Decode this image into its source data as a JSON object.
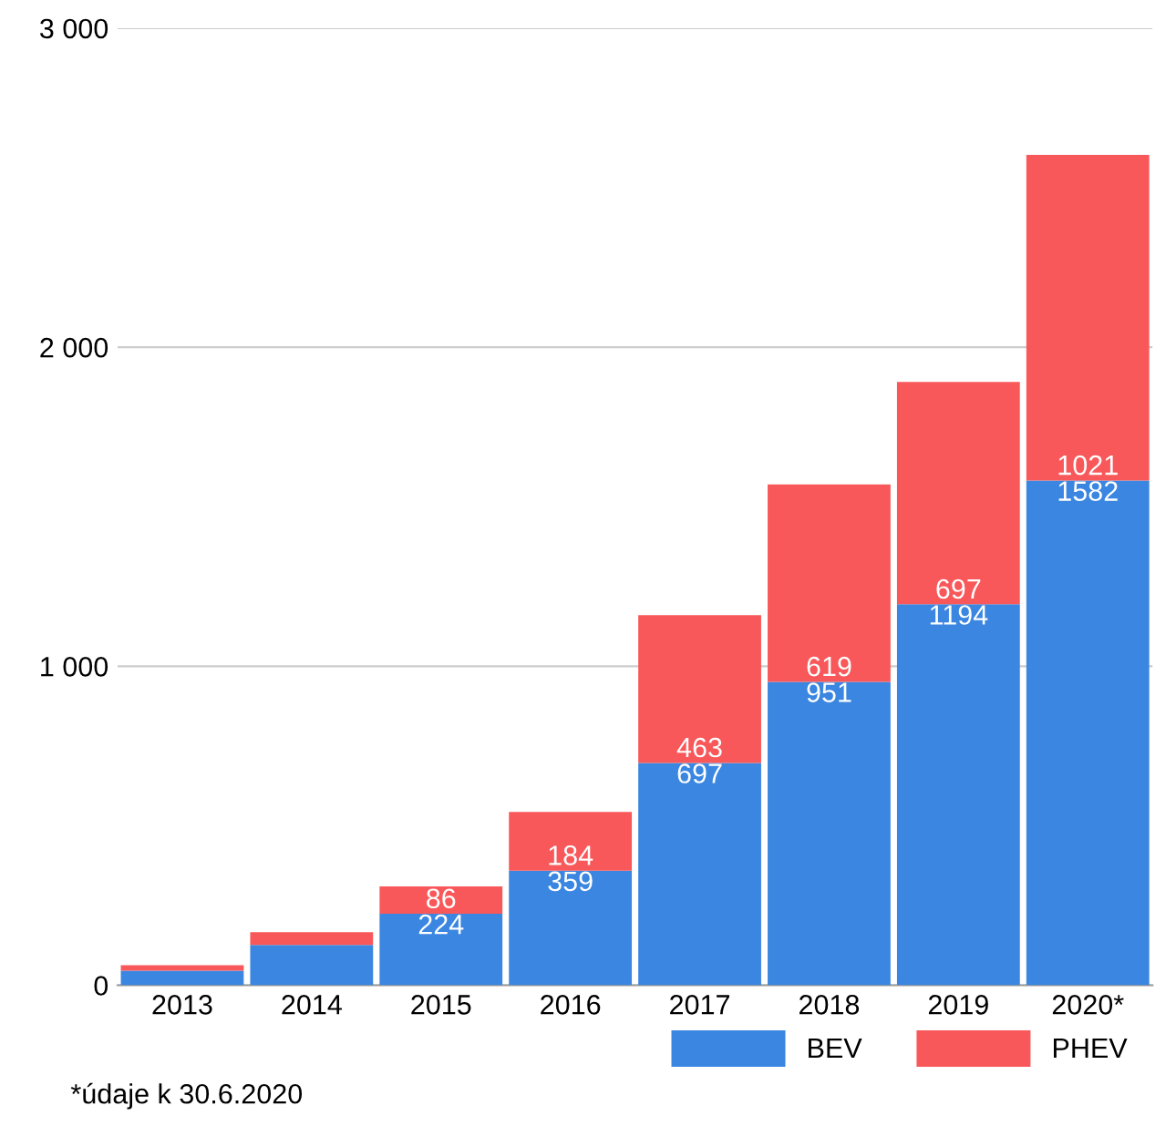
{
  "chart_data": {
    "type": "bar",
    "stacked": true,
    "categories": [
      "2013",
      "2014",
      "2015",
      "2016",
      "2017",
      "2018",
      "2019",
      "2020*"
    ],
    "series": [
      {
        "name": "BEV",
        "color": "#3a86e0",
        "values": [
          46,
          126,
          224,
          359,
          697,
          951,
          1194,
          1582
        ],
        "value_labels": [
          null,
          null,
          "224",
          "359",
          "697",
          "951",
          "1194",
          "1582"
        ]
      },
      {
        "name": "PHEV",
        "color": "#f9585a",
        "values": [
          17,
          40,
          86,
          184,
          463,
          619,
          697,
          1021
        ],
        "value_labels": [
          null,
          null,
          "86",
          "184",
          "463",
          "619",
          "697",
          "1021"
        ]
      }
    ],
    "ylim": [
      0,
      3000
    ],
    "yticks": [
      {
        "value": 0,
        "label": "0"
      },
      {
        "value": 1000,
        "label": "1 000"
      },
      {
        "value": 2000,
        "label": "2 000"
      },
      {
        "value": 3000,
        "label": "3 000"
      }
    ],
    "grid": "y",
    "legend": "bottom right",
    "annotations": [
      "*údaje k 30.6.2020"
    ]
  }
}
